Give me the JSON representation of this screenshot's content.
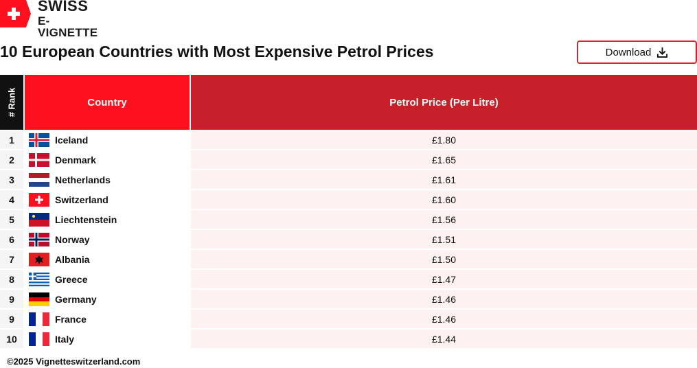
{
  "logo": {
    "line1": "SWISS",
    "line2": "E-VIGNETTE"
  },
  "title": "10 European Countries with Most Expensive Petrol Prices",
  "download": {
    "label": "Download"
  },
  "colors": {
    "accent": "#fe101e",
    "header_price": "#c8202b",
    "rank_header": "#111111",
    "row_tint": "#fdf1f1"
  },
  "chart_data": {
    "type": "table",
    "title": "10 European Countries with Most Expensive Petrol Prices",
    "columns": [
      "# Rank",
      "Country",
      "Petrol Price (Per Litre)"
    ],
    "rows": [
      {
        "rank": "1",
        "country": "Iceland",
        "flag": "iceland-flag-icon",
        "price": "£1.80"
      },
      {
        "rank": "2",
        "country": "Denmark",
        "flag": "denmark-flag-icon",
        "price": "£1.65"
      },
      {
        "rank": "3",
        "country": "Netherlands",
        "flag": "netherlands-flag-icon",
        "price": "£1.61"
      },
      {
        "rank": "4",
        "country": "Switzerland",
        "flag": "switzerland-flag-icon",
        "price": "£1.60"
      },
      {
        "rank": "5",
        "country": "Liechtenstein",
        "flag": "liechtenstein-flag-icon",
        "price": "£1.56"
      },
      {
        "rank": "6",
        "country": "Norway",
        "flag": "norway-flag-icon",
        "price": "£1.51"
      },
      {
        "rank": "7",
        "country": "Albania",
        "flag": "albania-flag-icon",
        "price": "£1.50"
      },
      {
        "rank": "8",
        "country": "Greece",
        "flag": "greece-flag-icon",
        "price": "£1.47"
      },
      {
        "rank": "9",
        "country": "Germany",
        "flag": "germany-flag-icon",
        "price": "£1.46"
      },
      {
        "rank": "9",
        "country": "France",
        "flag": "france-flag-icon",
        "price": "£1.46"
      },
      {
        "rank": "10",
        "country": "Italy",
        "flag": "italy-flag-icon",
        "price": "£1.44"
      }
    ]
  },
  "footer": "©2025 Vignetteswitzerland.com"
}
